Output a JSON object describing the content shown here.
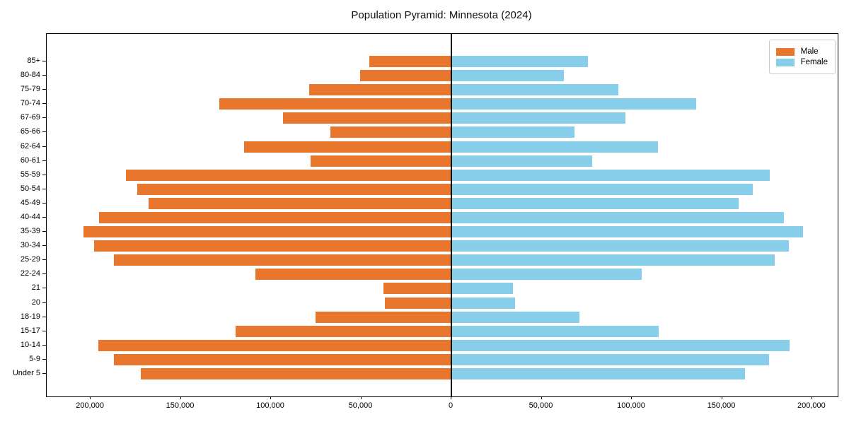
{
  "title": "Population Pyramid: Minnesota (2024)",
  "legend": {
    "items": [
      {
        "label": "Male",
        "color": "#e8762d"
      },
      {
        "label": "Female",
        "color": "#87ceeb"
      }
    ]
  },
  "chart_data": {
    "type": "bar",
    "subtype": "population-pyramid",
    "title": "Population Pyramid: Minnesota (2024)",
    "orientation": "horizontal",
    "categories_top_to_bottom": [
      "85+",
      "80-84",
      "75-79",
      "70-74",
      "67-69",
      "65-66",
      "62-64",
      "60-61",
      "55-59",
      "50-54",
      "45-49",
      "40-44",
      "35-39",
      "30-34",
      "25-29",
      "22-24",
      "21",
      "20",
      "18-19",
      "15-17",
      "10-14",
      "5-9",
      "Under 5"
    ],
    "series": [
      {
        "name": "Male",
        "side": "left",
        "color": "#e8762d",
        "values": [
          45500,
          50500,
          78800,
          128500,
          93300,
          67200,
          114800,
          77900,
          180400,
          174000,
          167900,
          195200,
          203900,
          198000,
          187000,
          108600,
          37800,
          36700,
          75400,
          119700,
          195700,
          187200,
          172000
        ]
      },
      {
        "name": "Female",
        "side": "right",
        "color": "#87ceeb",
        "values": [
          75700,
          62200,
          92400,
          135600,
          96600,
          68100,
          114600,
          78000,
          176400,
          167200,
          159100,
          184200,
          195000,
          187100,
          179200,
          105400,
          34000,
          35300,
          71100,
          114900,
          187300,
          176100,
          162800
        ]
      }
    ],
    "x_axis": {
      "tick_values": [
        -200000,
        -150000,
        -100000,
        -50000,
        0,
        50000,
        100000,
        150000,
        200000
      ],
      "tick_labels": [
        "200,000",
        "150,000",
        "100,000",
        "50,000",
        "0",
        "50,000",
        "100,000",
        "150,000",
        "200,000"
      ],
      "xlim": [
        -224300,
        214200
      ]
    },
    "grid": "off",
    "legend_position": "upper-right",
    "zero_line_color": "#000000"
  }
}
